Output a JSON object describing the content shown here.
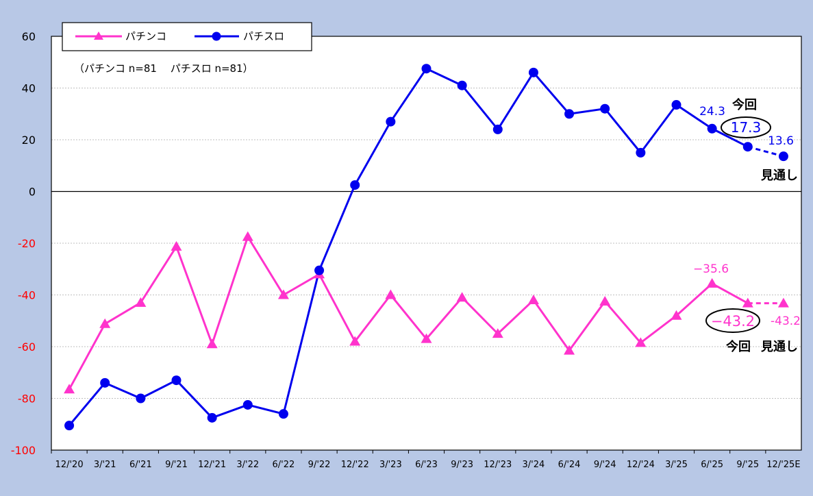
{
  "chart_data": {
    "type": "line",
    "categories": [
      "12/'20",
      "3/'21",
      "6/'21",
      "9/'21",
      "12/'21",
      "3/'22",
      "6/'22",
      "9/'22",
      "12/'22",
      "3/'23",
      "6/'23",
      "9/'23",
      "12/'23",
      "3/'24",
      "6/'24",
      "9/'24",
      "12/'24",
      "3/'25",
      "6/'25",
      "9/'25",
      "12/'25E"
    ],
    "series": [
      {
        "name": "パチンコ",
        "color": "#ff33cc",
        "marker": "triangle",
        "values": [
          -76.5,
          -51.2,
          -43.0,
          -21.3,
          -59.0,
          -17.5,
          -40.0,
          -32.0,
          -58.0,
          -40.0,
          -57.0,
          -41.0,
          -55.0,
          -42.0,
          -61.5,
          -42.5,
          -58.5,
          -48.0,
          -35.6,
          -43.2,
          -43.2
        ]
      },
      {
        "name": "パチスロ",
        "color": "#0000ee",
        "marker": "circle",
        "values": [
          -90.5,
          -74.0,
          -80.0,
          -73.0,
          -87.5,
          -82.5,
          -86.0,
          -30.5,
          2.5,
          27.0,
          47.5,
          41.0,
          24.0,
          46.0,
          30.0,
          32.0,
          15.0,
          33.5,
          24.3,
          17.3,
          13.6
        ]
      }
    ],
    "ylim": [
      -100,
      60
    ],
    "yticks": [
      -100,
      -80,
      -60,
      -40,
      -20,
      0,
      20,
      40,
      60
    ],
    "grid": true,
    "legend_position": "top-left",
    "sample_note": "（パチンコ  n=81　 パチスロ  n=81）",
    "annotations": {
      "pachislot_prev": "24.3",
      "pachislot_current": "17.3",
      "pachislot_forecast": "13.6",
      "pachinko_prev": "−35.6",
      "pachinko_current": "−43.2",
      "pachinko_forecast": "-43.2",
      "current_label": "今回",
      "forecast_label": "見通し"
    }
  }
}
